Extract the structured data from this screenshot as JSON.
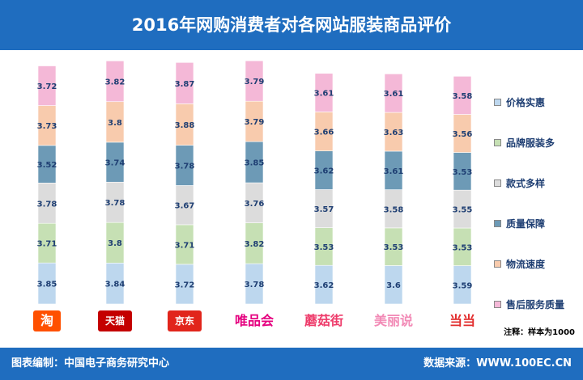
{
  "title": "2016年网购消费者对各网站服装商品评价",
  "footer_left": "图表编制：中国电子商务研究中心",
  "footer_right": "数据来源：WWW.100EC.CN",
  "note": "注释：样本为1000",
  "colors": {
    "header": "#1f6dbf",
    "label_text": "#1f3f73"
  },
  "logos": [
    {
      "text": "淘",
      "color": "#ff5000",
      "bg": "#ff5000",
      "fg": "#ffffff"
    },
    {
      "text": "天猫",
      "color": "#c40000",
      "bg": "#c40000",
      "fg": "#ffffff"
    },
    {
      "text": "京东",
      "color": "#e1251b",
      "bg": "#e1251b",
      "fg": "#ffffff"
    },
    {
      "text": "唯品会",
      "color": "#e5007f",
      "bg": "none",
      "fg": "#e5007f"
    },
    {
      "text": "蘑菇街",
      "color": "#ee3c6b",
      "bg": "none",
      "fg": "#ee3c6b"
    },
    {
      "text": "美丽说",
      "color": "#f28ab6",
      "bg": "none",
      "fg": "#f28ab6"
    },
    {
      "text": "当当",
      "color": "#e22d2d",
      "bg": "none",
      "fg": "#e22d2d"
    }
  ],
  "chart_data": {
    "type": "bar",
    "stacked": true,
    "categories": [
      "淘宝",
      "天猫",
      "京东",
      "唯品会",
      "蘑菇街",
      "美丽说",
      "当当"
    ],
    "series": [
      {
        "name": "价格实惠",
        "color": "#bdd7ee",
        "values": [
          3.85,
          3.84,
          3.72,
          3.78,
          3.62,
          3.6,
          3.59
        ]
      },
      {
        "name": "品牌服装多",
        "color": "#c6e0b4",
        "values": [
          3.71,
          3.8,
          3.71,
          3.82,
          3.53,
          3.53,
          3.53
        ]
      },
      {
        "name": "款式多样",
        "color": "#dcdcdc",
        "values": [
          3.78,
          3.78,
          3.67,
          3.76,
          3.57,
          3.58,
          3.55
        ]
      },
      {
        "name": "质量保障",
        "color": "#6d9ab6",
        "values": [
          3.52,
          3.74,
          3.78,
          3.85,
          3.62,
          3.61,
          3.53
        ]
      },
      {
        "name": "物流速度",
        "color": "#f8cbad",
        "values": [
          3.73,
          3.8,
          3.88,
          3.79,
          3.66,
          3.63,
          3.56
        ]
      },
      {
        "name": "售后服务质量",
        "color": "#f4b8d7",
        "values": [
          3.72,
          3.82,
          3.87,
          3.79,
          3.61,
          3.61,
          3.58
        ]
      }
    ],
    "legend_position": "right",
    "grid": false
  }
}
